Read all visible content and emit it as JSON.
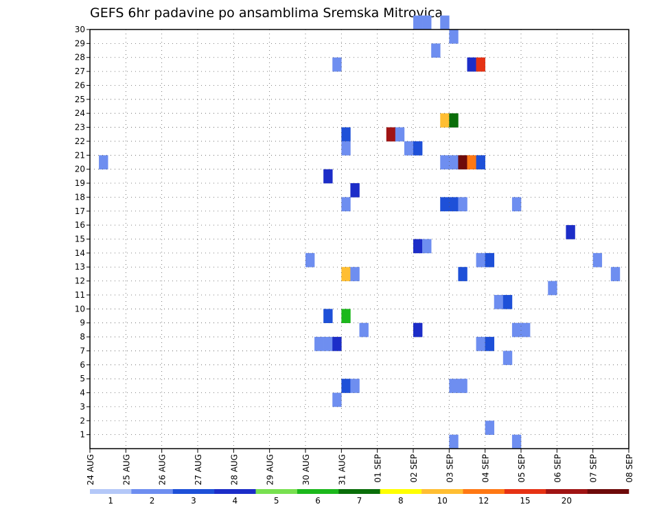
{
  "chart_data": {
    "type": "heatmap",
    "title": "GEFS 6hr padavine po ansamblima Sremska Mitrovica",
    "xlabel": "",
    "ylabel": "",
    "x_ticks": [
      "24 AUG",
      "25 AUG",
      "26 AUG",
      "27 AUG",
      "28 AUG",
      "29 AUG",
      "30 AUG",
      "31 AUG",
      "01 SEP",
      "02 SEP",
      "03 SEP",
      "04 SEP",
      "05 SEP",
      "06 SEP",
      "07 SEP",
      "08 SEP"
    ],
    "x_steps_per_tick": 4,
    "y_ticks": [
      1,
      2,
      3,
      4,
      5,
      6,
      7,
      8,
      9,
      10,
      11,
      12,
      13,
      14,
      15,
      16,
      17,
      18,
      19,
      20,
      21,
      22,
      23,
      24,
      25,
      26,
      27,
      28,
      29,
      30
    ],
    "ylim": [
      0,
      30
    ],
    "grid": true,
    "colorbar": {
      "labels": [
        "1",
        "2",
        "3",
        "4",
        "5",
        "6",
        "7",
        "8",
        "10",
        "12",
        "15",
        "20"
      ],
      "colors": [
        "#b4c8f8",
        "#6e8ef0",
        "#1e50d8",
        "#1c2dc8",
        "#78e050",
        "#1cb81c",
        "#0a6e0a",
        "#ffff00",
        "#ffbe32",
        "#ff7814",
        "#e63214",
        "#a01414",
        "#6e0a0a"
      ]
    },
    "cells": [
      {
        "m": 30,
        "t": "02 SEP 00h",
        "v": 1
      },
      {
        "m": 30,
        "t": "02 SEP 06h",
        "v": 1
      },
      {
        "m": 30,
        "t": "02 SEP 18h",
        "v": 1
      },
      {
        "m": 29,
        "t": "03 SEP 00h",
        "v": 1
      },
      {
        "m": 28,
        "t": "02 SEP 12h",
        "v": 1
      },
      {
        "m": 27,
        "t": "30 AUG 18h",
        "v": 1
      },
      {
        "m": 27,
        "t": "03 SEP 12h",
        "v": 3
      },
      {
        "m": 27,
        "t": "03 SEP 18h",
        "v": 12
      },
      {
        "m": 23,
        "t": "02 SEP 18h",
        "v": 8
      },
      {
        "m": 23,
        "t": "03 SEP 00h",
        "v": 6
      },
      {
        "m": 22,
        "t": "31 AUG 00h",
        "v": 2
      },
      {
        "m": 22,
        "t": "01 SEP 06h",
        "v": 15
      },
      {
        "m": 22,
        "t": "01 SEP 12h",
        "v": 1
      },
      {
        "m": 21,
        "t": "31 AUG 00h",
        "v": 1
      },
      {
        "m": 21,
        "t": "01 SEP 18h",
        "v": 1
      },
      {
        "m": 21,
        "t": "02 SEP 00h",
        "v": 2
      },
      {
        "m": 20,
        "t": "24 AUG 06h",
        "v": 1
      },
      {
        "m": 20,
        "t": "02 SEP 18h",
        "v": 1
      },
      {
        "m": 20,
        "t": "03 SEP 00h",
        "v": 1
      },
      {
        "m": 20,
        "t": "03 SEP 06h",
        "v": 20
      },
      {
        "m": 20,
        "t": "03 SEP 12h",
        "v": 10
      },
      {
        "m": 20,
        "t": "03 SEP 18h",
        "v": 2
      },
      {
        "m": 19,
        "t": "30 AUG 12h",
        "v": 3
      },
      {
        "m": 18,
        "t": "31 AUG 06h",
        "v": 3
      },
      {
        "m": 17,
        "t": "31 AUG 00h",
        "v": 1
      },
      {
        "m": 17,
        "t": "02 SEP 18h",
        "v": 2
      },
      {
        "m": 17,
        "t": "03 SEP 00h",
        "v": 2
      },
      {
        "m": 17,
        "t": "03 SEP 06h",
        "v": 1
      },
      {
        "m": 17,
        "t": "04 SEP 18h",
        "v": 1
      },
      {
        "m": 15,
        "t": "06 SEP 06h",
        "v": 3
      },
      {
        "m": 14,
        "t": "02 SEP 00h",
        "v": 3
      },
      {
        "m": 14,
        "t": "02 SEP 06h",
        "v": 1
      },
      {
        "m": 13,
        "t": "30 AUG 00h",
        "v": 1
      },
      {
        "m": 13,
        "t": "03 SEP 18h",
        "v": 1
      },
      {
        "m": 13,
        "t": "04 SEP 00h",
        "v": 2
      },
      {
        "m": 13,
        "t": "07 SEP 00h",
        "v": 1
      },
      {
        "m": 12,
        "t": "31 AUG 00h",
        "v": 8
      },
      {
        "m": 12,
        "t": "31 AUG 06h",
        "v": 1
      },
      {
        "m": 12,
        "t": "03 SEP 06h",
        "v": 2
      },
      {
        "m": 12,
        "t": "07 SEP 12h",
        "v": 1
      },
      {
        "m": 11,
        "t": "05 SEP 18h",
        "v": 1
      },
      {
        "m": 10,
        "t": "04 SEP 06h",
        "v": 1
      },
      {
        "m": 10,
        "t": "04 SEP 12h",
        "v": 2
      },
      {
        "m": 9,
        "t": "30 AUG 12h",
        "v": 2
      },
      {
        "m": 9,
        "t": "31 AUG 00h",
        "v": 5
      },
      {
        "m": 8,
        "t": "31 AUG 12h",
        "v": 1
      },
      {
        "m": 8,
        "t": "02 SEP 00h",
        "v": 3
      },
      {
        "m": 8,
        "t": "04 SEP 18h",
        "v": 1
      },
      {
        "m": 8,
        "t": "05 SEP 00h",
        "v": 1
      },
      {
        "m": 7,
        "t": "30 AUG 06h",
        "v": 1
      },
      {
        "m": 7,
        "t": "30 AUG 12h",
        "v": 1
      },
      {
        "m": 7,
        "t": "30 AUG 18h",
        "v": 3
      },
      {
        "m": 7,
        "t": "03 SEP 18h",
        "v": 1
      },
      {
        "m": 7,
        "t": "04 SEP 00h",
        "v": 2
      },
      {
        "m": 6,
        "t": "04 SEP 12h",
        "v": 1
      },
      {
        "m": 4,
        "t": "31 AUG 00h",
        "v": 2
      },
      {
        "m": 4,
        "t": "31 AUG 06h",
        "v": 1
      },
      {
        "m": 4,
        "t": "03 SEP 00h",
        "v": 1
      },
      {
        "m": 4,
        "t": "03 SEP 06h",
        "v": 1
      },
      {
        "m": 3,
        "t": "30 AUG 18h",
        "v": 1
      },
      {
        "m": 1,
        "t": "04 SEP 00h",
        "v": 1
      },
      {
        "m": 0,
        "t": "03 SEP 00h",
        "v": 1
      },
      {
        "m": 0,
        "t": "04 SEP 18h",
        "v": 1
      }
    ]
  }
}
